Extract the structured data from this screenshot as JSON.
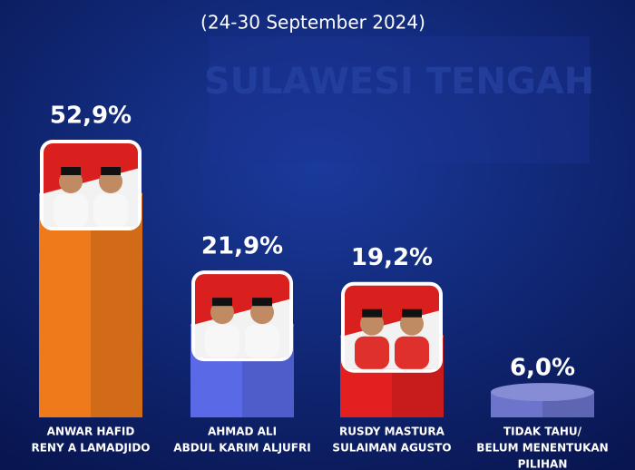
{
  "chart_data": {
    "type": "bar",
    "subtitle": "(24-30 September 2024)",
    "watermark": "SULAWESI TENGAH",
    "categories": [
      [
        "ANWAR HAFID",
        "RENY A LAMADJIDO"
      ],
      [
        "AHMAD ALI",
        "ABDUL KARIM ALJUFRI"
      ],
      [
        "RUSDY MASTURA",
        "SULAIMAN AGUSTO"
      ],
      [
        "TIDAK TAHU/",
        "BELUM MENENTUKAN",
        "PILIHAN"
      ]
    ],
    "values": [
      52.9,
      21.9,
      19.2,
      6.0
    ],
    "value_labels": [
      "52,9%",
      "21,9%",
      "19,2%",
      "6,0%"
    ],
    "colors": [
      "#ee7a1c",
      "#5a6ae6",
      "#e3201f",
      "#6c74cc"
    ],
    "photos": [
      true,
      true,
      true,
      false
    ]
  }
}
